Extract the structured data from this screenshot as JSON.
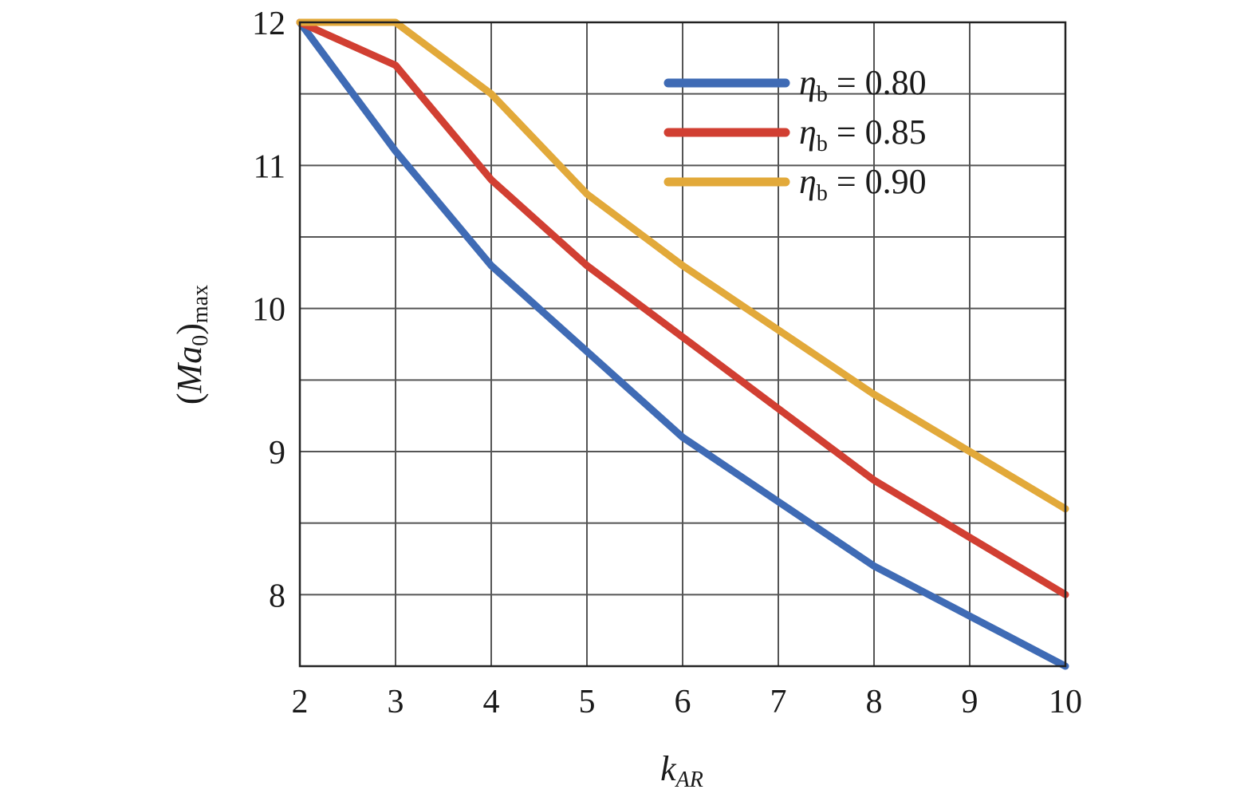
{
  "chart_data": {
    "type": "line",
    "title": "",
    "xlabel": {
      "main": "k",
      "sub": "AR"
    },
    "ylabel": {
      "open": "(",
      "main": "Ma",
      "sub0": "0",
      "close": ")",
      "sub": "max"
    },
    "x": [
      2,
      3,
      4,
      5,
      6,
      7,
      8,
      9,
      10
    ],
    "xlim": [
      2,
      10
    ],
    "ylim": [
      7.5,
      12
    ],
    "xticks": [
      "2",
      "3",
      "4",
      "5",
      "6",
      "7",
      "8",
      "9",
      "10"
    ],
    "yticks": [
      {
        "value": 8,
        "label": "8"
      },
      {
        "value": 9,
        "label": "9"
      },
      {
        "value": 10,
        "label": "10"
      },
      {
        "value": 11,
        "label": "11"
      },
      {
        "value": 12,
        "label": "12"
      }
    ],
    "grid": true,
    "grid_y_step": 0.5,
    "legend_position": "top-right",
    "series": [
      {
        "symbol": "η",
        "sub": "b",
        "eq": " = 0.80",
        "color": "#3f6bb5",
        "values": [
          12.0,
          11.1,
          10.3,
          9.7,
          9.1,
          8.65,
          8.2,
          7.85,
          7.5
        ]
      },
      {
        "symbol": "η",
        "sub": "b",
        "eq": " = 0.85",
        "color": "#d13f32",
        "values": [
          12.0,
          11.7,
          10.9,
          10.3,
          9.8,
          9.3,
          8.8,
          8.4,
          8.0
        ]
      },
      {
        "symbol": "η",
        "sub": "b",
        "eq": " = 0.90",
        "color": "#e2a93a",
        "values": [
          12.0,
          12.0,
          11.5,
          10.8,
          10.3,
          9.85,
          9.4,
          9.0,
          8.6
        ]
      }
    ]
  }
}
